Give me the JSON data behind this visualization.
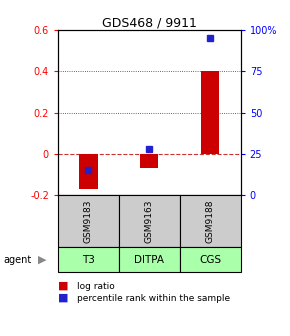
{
  "title": "GDS468 / 9911",
  "samples": [
    "GSM9183",
    "GSM9163",
    "GSM9188"
  ],
  "agents": [
    "T3",
    "DITPA",
    "CGS"
  ],
  "log_ratios": [
    -0.17,
    -0.07,
    0.4
  ],
  "percentile_ranks": [
    15,
    28,
    95
  ],
  "ylim_left": [
    -0.2,
    0.6
  ],
  "ylim_right": [
    0,
    100
  ],
  "yticks_left": [
    -0.2,
    0.0,
    0.2,
    0.4,
    0.6
  ],
  "yticks_right": [
    0,
    25,
    50,
    75,
    100
  ],
  "yticklabels_right": [
    "0",
    "25",
    "50",
    "75",
    "100%"
  ],
  "bar_color": "#cc0000",
  "dot_color": "#2222cc",
  "agent_bg_color": "#aaffaa",
  "sample_bg_color": "#cccccc",
  "zero_line_color": "#cc3333",
  "dotted_line_color": "#333333",
  "title_fontsize": 9,
  "bar_width": 0.3
}
